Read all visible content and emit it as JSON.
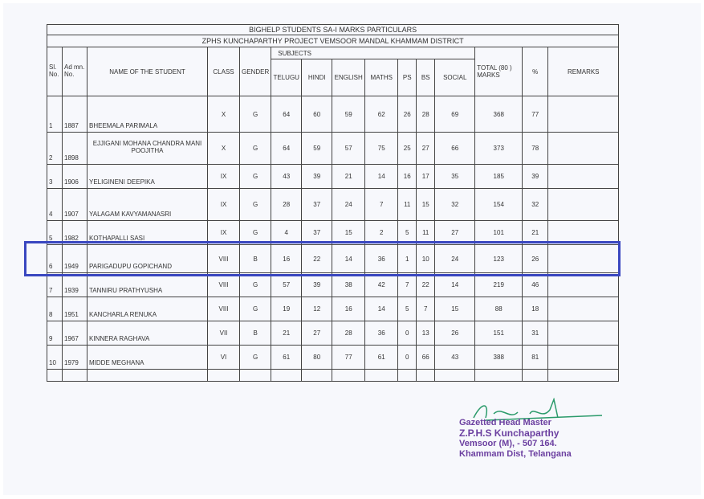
{
  "title": "BIGHELP STUDENTS SA-I MARKS PARTICULARS",
  "subtitle": "ZPHS KUNCHAPARTHY  PROJECT VEMSOOR MANDAL KHAMMAM DISTRICT",
  "headers": {
    "sl": "Sl. No.",
    "admn": "Ad mn. No.",
    "name": "NAME OF THE STUDENT",
    "class": "CLASS",
    "gender": "GENDER",
    "subjects": "SUBJECTS",
    "telugu": "TELUGU",
    "hindi": "HINDI",
    "english": "ENGLISH",
    "maths": "MATHS",
    "ps": "PS",
    "bs": "BS",
    "social": "SOCIAL",
    "total": "TOTAL (80 ) MARKS",
    "pct": "%",
    "remarks": "REMARKS"
  },
  "rows": [
    [
      "1",
      "1887",
      "BHEEMALA PARIMALA",
      "X",
      "G",
      "64",
      "60",
      "59",
      "62",
      "26",
      "28",
      "69",
      "368",
      "77"
    ],
    [
      "2",
      "1898",
      "EJJIGANI MOHANA CHANDRA MANI POOJITHA",
      "X",
      "G",
      "64",
      "59",
      "57",
      "75",
      "25",
      "27",
      "66",
      "373",
      "78"
    ],
    [
      "3",
      "1906",
      "YELIGINENI DEEPIKA",
      "IX",
      "G",
      "43",
      "39",
      "21",
      "14",
      "16",
      "17",
      "35",
      "185",
      "39"
    ],
    [
      "4",
      "1907",
      "YALAGAM KAVYAMANASRI",
      "IX",
      "G",
      "28",
      "37",
      "24",
      "7",
      "11",
      "15",
      "32",
      "154",
      "32"
    ],
    [
      "5",
      "1982",
      "KOTHAPALLI SASI",
      "IX",
      "G",
      "4",
      "37",
      "15",
      "2",
      "5",
      "11",
      "27",
      "101",
      "21"
    ],
    [
      "6",
      "1949",
      "PARIGADUPU GOPICHAND",
      "VIII",
      "B",
      "16",
      "22",
      "14",
      "36",
      "1",
      "10",
      "24",
      "123",
      "26"
    ],
    [
      "7",
      "1939",
      "TANNIRU PRATHYUSHA",
      "VIII",
      "G",
      "57",
      "39",
      "38",
      "42",
      "7",
      "22",
      "14",
      "219",
      "46"
    ],
    [
      "8",
      "1951",
      "KANCHARLA RENUKA",
      "VIII",
      "G",
      "19",
      "12",
      "16",
      "14",
      "5",
      "7",
      "15",
      "88",
      "18"
    ],
    [
      "9",
      "1967",
      "KINNERA RAGHAVA",
      "VII",
      "B",
      "21",
      "27",
      "28",
      "36",
      "0",
      "13",
      "26",
      "151",
      "31"
    ],
    [
      "10",
      "1979",
      "MIDDE MEGHANA",
      "VI",
      "G",
      "61",
      "80",
      "77",
      "61",
      "0",
      "66",
      "43",
      "388",
      "81"
    ]
  ],
  "row_heights": [],
  "signature": [
    "Gazetted Head Master",
    "Z.P.H.S Kunchaparthy",
    "Vemsoor (M), - 507 164.",
    "Khammam Dist, Telangana"
  ],
  "colors": {
    "highlight": "#3a47c0",
    "stamp": "#6b3fa0"
  }
}
